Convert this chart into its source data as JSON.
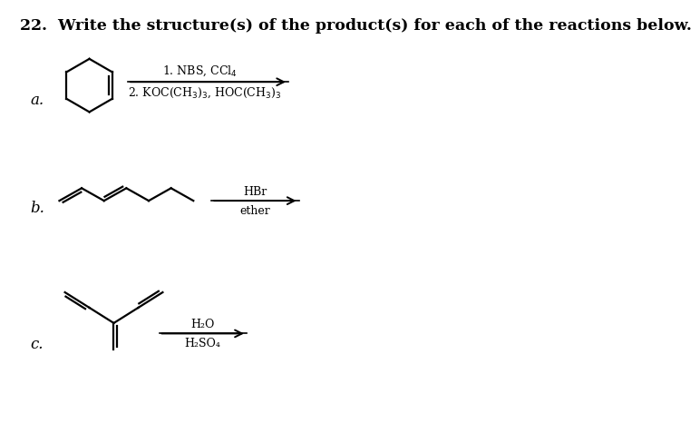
{
  "title": "22.  Write the structure(s) of the product(s) for each of the reactions below.",
  "title_fontsize": 12.5,
  "bg_color": "#ffffff",
  "text_color": "#000000",
  "label_a": "a.",
  "label_b": "b.",
  "label_c": "c.",
  "rxn_b_top": "HBr",
  "rxn_b_bot": "ether",
  "rxn_c_top": "H₂O",
  "rxn_c_bot": "H₂SO₄",
  "font_family": "DejaVu Serif",
  "mol_linewidth": 1.6
}
